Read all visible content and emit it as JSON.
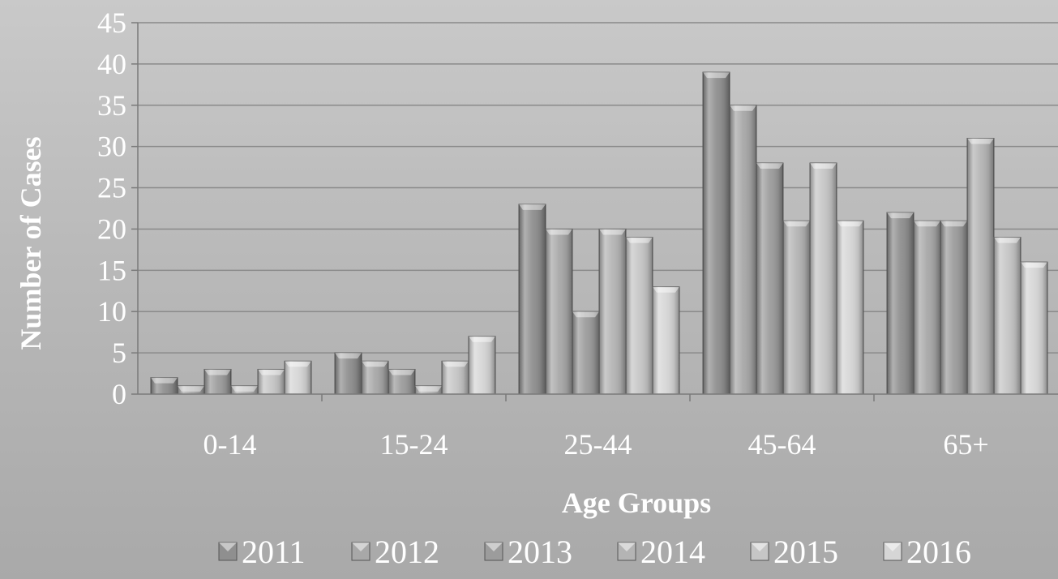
{
  "chart_data": {
    "type": "bar",
    "title": "",
    "xlabel": "Age Groups",
    "ylabel": "Number of Cases",
    "ylim": [
      0,
      45
    ],
    "yticks": [
      0,
      5,
      10,
      15,
      20,
      25,
      30,
      35,
      40,
      45
    ],
    "grid": true,
    "legend_position": "bottom",
    "categories": [
      "0-14",
      "15-24",
      "25-44",
      "45-64",
      "65+"
    ],
    "series": [
      {
        "name": "2011",
        "values": [
          2,
          5,
          23,
          39,
          22
        ],
        "color": "#8f8f8f"
      },
      {
        "name": "2012",
        "values": [
          1,
          4,
          20,
          35,
          21
        ],
        "color": "#a8a8a8"
      },
      {
        "name": "2013",
        "values": [
          3,
          3,
          10,
          28,
          21
        ],
        "color": "#9c9c9c"
      },
      {
        "name": "2014",
        "values": [
          1,
          1,
          20,
          21,
          31
        ],
        "color": "#b4b4b4"
      },
      {
        "name": "2015",
        "values": [
          3,
          4,
          19,
          28,
          19
        ],
        "color": "#c6c6c6"
      },
      {
        "name": "2016",
        "values": [
          4,
          7,
          13,
          21,
          16
        ],
        "color": "#d6d6d6"
      }
    ]
  }
}
